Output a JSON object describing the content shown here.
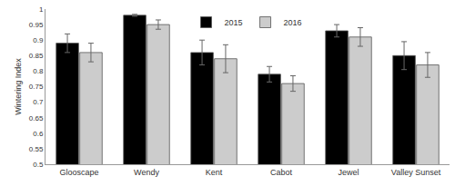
{
  "chart_data": {
    "type": "bar",
    "y_label": "Wintering Index",
    "categories": [
      "Glooscape",
      "Wendy",
      "Kent",
      "Cabot",
      "Jewel",
      "Valley Sunset"
    ],
    "series": [
      {
        "name": "2015",
        "color": "#000000",
        "values": [
          0.89,
          0.98,
          0.86,
          0.79,
          0.93,
          0.85
        ],
        "errors": [
          0.03,
          0.003,
          0.04,
          0.025,
          0.02,
          0.045
        ]
      },
      {
        "name": "2016",
        "color": "#cccccc",
        "values": [
          0.86,
          0.95,
          0.84,
          0.76,
          0.91,
          0.82
        ],
        "errors": [
          0.03,
          0.015,
          0.045,
          0.025,
          0.03,
          0.04
        ]
      }
    ],
    "ylim": [
      0.5,
      1
    ],
    "yticks": [
      0.5,
      0.55,
      0.6,
      0.65,
      0.7,
      0.75,
      0.8,
      0.85,
      0.9,
      0.95,
      1
    ],
    "grid": false,
    "legend": "top"
  }
}
